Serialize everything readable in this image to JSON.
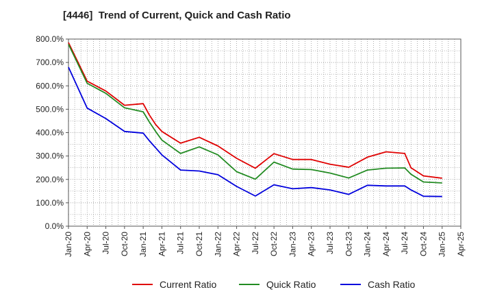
{
  "chart_data": {
    "type": "line",
    "title": "[4446]  Trend of Current, Quick and Cash Ratio",
    "xlabel": "",
    "ylabel": "",
    "ylim": [
      0,
      800
    ],
    "yticks": [
      0,
      100,
      200,
      300,
      400,
      500,
      600,
      700,
      800
    ],
    "ytick_labels": [
      "0.0%",
      "100.0%",
      "200.0%",
      "300.0%",
      "400.0%",
      "500.0%",
      "600.0%",
      "700.0%",
      "800.0%"
    ],
    "x_months": [
      "Jan-20",
      "Feb-20",
      "Mar-20",
      "Apr-20",
      "May-20",
      "Jun-20",
      "Jul-20",
      "Aug-20",
      "Sep-20",
      "Oct-20",
      "Nov-20",
      "Dec-20",
      "Jan-21",
      "Feb-21",
      "Mar-21",
      "Apr-21",
      "May-21",
      "Jun-21",
      "Jul-21",
      "Aug-21",
      "Sep-21",
      "Oct-21",
      "Nov-21",
      "Dec-21",
      "Jan-22",
      "Feb-22",
      "Mar-22",
      "Apr-22",
      "May-22",
      "Jun-22",
      "Jul-22",
      "Aug-22",
      "Sep-22",
      "Oct-22",
      "Nov-22",
      "Dec-22",
      "Jan-23",
      "Feb-23",
      "Mar-23",
      "Apr-23",
      "May-23",
      "Jun-23",
      "Jul-23",
      "Aug-23",
      "Sep-23",
      "Oct-23",
      "Nov-23",
      "Dec-23",
      "Jan-24",
      "Feb-24",
      "Mar-24",
      "Apr-24",
      "May-24",
      "Jun-24",
      "Jul-24",
      "Aug-24",
      "Sep-24",
      "Oct-24",
      "Nov-24",
      "Dec-24",
      "Jan-25",
      "Feb-25",
      "Mar-25",
      "Apr-25"
    ],
    "xtick_labels": [
      "Jan-20",
      "Apr-20",
      "Jul-20",
      "Oct-20",
      "Jan-21",
      "Apr-21",
      "Jul-21",
      "Oct-21",
      "Jan-22",
      "Apr-22",
      "Jul-22",
      "Oct-22",
      "Jan-23",
      "Apr-23",
      "Jul-23",
      "Oct-23",
      "Jan-24",
      "Apr-24",
      "Jul-24",
      "Oct-24",
      "Jan-25",
      "Apr-25"
    ],
    "series": [
      {
        "name": "Current Ratio",
        "color": "#e00000",
        "x_index": [
          0,
          3,
          6,
          9,
          12,
          13,
          14,
          15,
          18,
          21,
          24,
          27,
          30,
          33,
          36,
          39,
          42,
          45,
          48,
          51,
          54,
          55,
          57,
          60
        ],
        "values": [
          785,
          620,
          578,
          517,
          524,
          475,
          435,
          405,
          355,
          380,
          343,
          290,
          248,
          310,
          285,
          285,
          265,
          252,
          295,
          318,
          311,
          250,
          215,
          205
        ]
      },
      {
        "name": "Quick Ratio",
        "color": "#228b22",
        "x_index": [
          0,
          3,
          6,
          9,
          12,
          13,
          14,
          15,
          18,
          21,
          24,
          27,
          30,
          33,
          36,
          39,
          42,
          45,
          48,
          51,
          54,
          55,
          57,
          60
        ],
        "values": [
          778,
          611,
          568,
          506,
          489,
          445,
          405,
          368,
          311,
          339,
          305,
          233,
          201,
          274,
          244,
          242,
          227,
          206,
          240,
          248,
          249,
          222,
          189,
          185
        ]
      },
      {
        "name": "Cash Ratio",
        "color": "#0000dd",
        "x_index": [
          0,
          3,
          6,
          9,
          12,
          13,
          14,
          15,
          18,
          21,
          24,
          27,
          30,
          33,
          36,
          39,
          42,
          45,
          48,
          51,
          54,
          55,
          57,
          60
        ],
        "values": [
          680,
          505,
          460,
          405,
          398,
          365,
          335,
          305,
          240,
          236,
          220,
          170,
          129,
          177,
          160,
          165,
          155,
          136,
          175,
          172,
          172,
          155,
          128,
          127
        ]
      }
    ],
    "legend": {
      "placement": "bottom-center",
      "items": [
        "Current Ratio",
        "Quick Ratio",
        "Cash Ratio"
      ]
    },
    "grid": "dotted"
  }
}
